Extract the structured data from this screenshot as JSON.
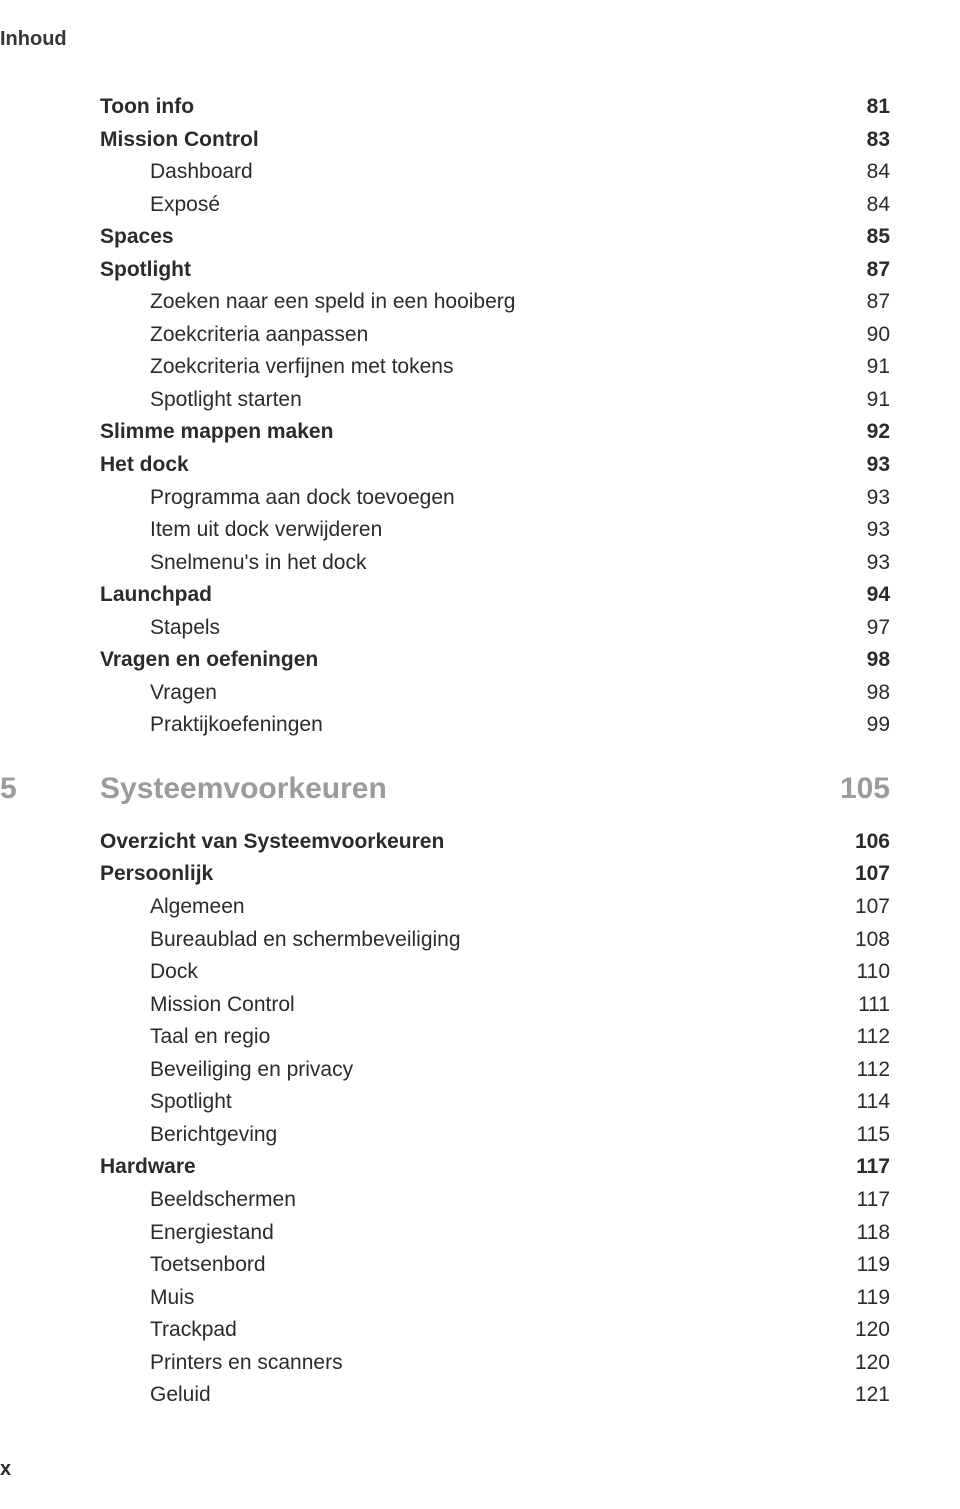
{
  "runningHead": "Inhoud",
  "folio": "x",
  "colors": {
    "text": "#2b2b2b",
    "chapterGrey": "#9b9b9b",
    "background": "#ffffff"
  },
  "typography": {
    "body_pt": 16,
    "chapter_pt": 22,
    "weights": {
      "regular": 400,
      "bold": 700
    }
  },
  "entries": [
    {
      "type": "l1",
      "label": "Toon info",
      "page": "81"
    },
    {
      "type": "l1",
      "label": "Mission Control",
      "page": "83"
    },
    {
      "type": "l2",
      "label": "Dashboard",
      "page": "84"
    },
    {
      "type": "l2",
      "label": "Exposé",
      "page": "84"
    },
    {
      "type": "l1",
      "label": "Spaces",
      "page": "85"
    },
    {
      "type": "l1",
      "label": "Spotlight",
      "page": "87"
    },
    {
      "type": "l2",
      "label": "Zoeken naar een speld in een hooiberg",
      "page": "87"
    },
    {
      "type": "l2",
      "label": "Zoekcriteria aanpassen",
      "page": "90"
    },
    {
      "type": "l2",
      "label": "Zoekcriteria verfijnen met tokens",
      "page": "91"
    },
    {
      "type": "l2",
      "label": "Spotlight starten",
      "page": "91"
    },
    {
      "type": "l1",
      "label": "Slimme mappen maken",
      "page": "92"
    },
    {
      "type": "l1",
      "label": "Het dock",
      "page": "93"
    },
    {
      "type": "l2",
      "label": "Programma aan dock toevoegen",
      "page": "93"
    },
    {
      "type": "l2",
      "label": "Item uit dock verwijderen",
      "page": "93"
    },
    {
      "type": "l2",
      "label": "Snelmenu's in het dock",
      "page": "93"
    },
    {
      "type": "l1",
      "label": "Launchpad",
      "page": "94"
    },
    {
      "type": "l2",
      "label": "Stapels",
      "page": "97"
    },
    {
      "type": "l1",
      "label": "Vragen en oefeningen",
      "page": "98"
    },
    {
      "type": "l2",
      "label": "Vragen",
      "page": "98"
    },
    {
      "type": "l2",
      "label": "Praktijkoefeningen",
      "page": "99"
    },
    {
      "type": "chapter",
      "num": "5",
      "label": "Systeemvoorkeuren",
      "page": "105"
    },
    {
      "type": "l1",
      "label": "Overzicht van Systeemvoorkeuren",
      "page": "106"
    },
    {
      "type": "l1",
      "label": "Persoonlijk",
      "page": "107"
    },
    {
      "type": "l2",
      "label": "Algemeen",
      "page": "107"
    },
    {
      "type": "l2",
      "label": "Bureaublad en schermbeveiliging",
      "page": "108"
    },
    {
      "type": "l2",
      "label": "Dock",
      "page": "110"
    },
    {
      "type": "l2",
      "label": "Mission Control",
      "page": "111"
    },
    {
      "type": "l2",
      "label": "Taal en regio",
      "page": "112"
    },
    {
      "type": "l2",
      "label": "Beveiliging en privacy",
      "page": "112"
    },
    {
      "type": "l2",
      "label": "Spotlight",
      "page": "114"
    },
    {
      "type": "l2",
      "label": "Berichtgeving",
      "page": "115"
    },
    {
      "type": "l1",
      "label": "Hardware",
      "page": "117"
    },
    {
      "type": "l2",
      "label": "Beeldschermen",
      "page": "117"
    },
    {
      "type": "l2",
      "label": "Energiestand",
      "page": "118"
    },
    {
      "type": "l2",
      "label": "Toetsenbord",
      "page": "119"
    },
    {
      "type": "l2",
      "label": "Muis",
      "page": "119"
    },
    {
      "type": "l2",
      "label": "Trackpad",
      "page": "120"
    },
    {
      "type": "l2",
      "label": "Printers en scanners",
      "page": "120"
    },
    {
      "type": "l2",
      "label": "Geluid",
      "page": "121"
    }
  ]
}
